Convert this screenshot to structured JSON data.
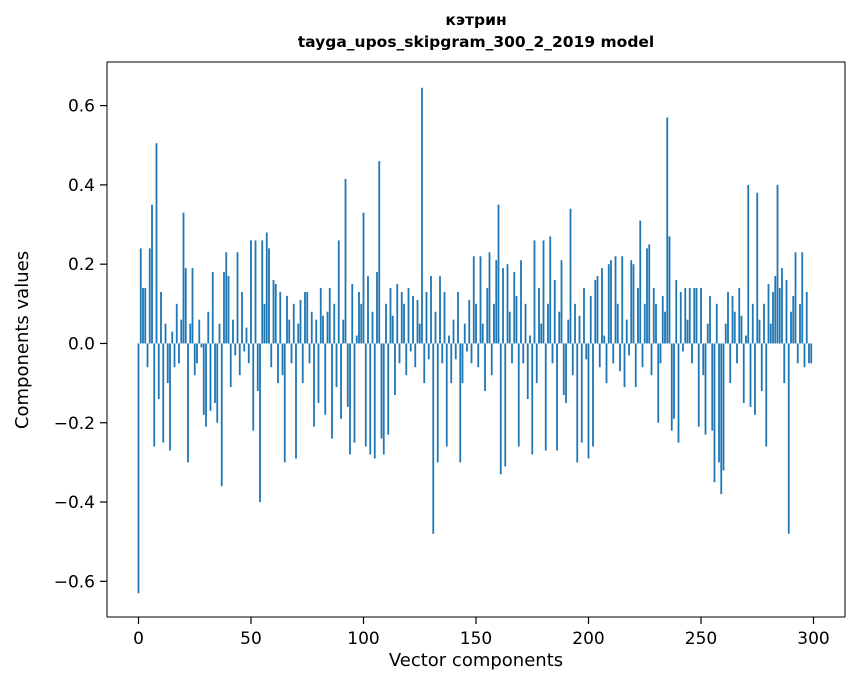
{
  "title": {
    "line1": "кэтрин",
    "line2": "tayga_upos_skipgram_300_2_2019 model"
  },
  "axes": {
    "xlabel": "Vector components",
    "ylabel": "Components values"
  },
  "chart_data": {
    "type": "bar",
    "title": "кэтрин — tayga_upos_skipgram_300_2_2019 model",
    "xlabel": "Vector components",
    "ylabel": "Components values",
    "bar_color": "#1f77b4",
    "grid": false,
    "legend": false,
    "xlim": [
      -14,
      314
    ],
    "ylim": [
      -0.69,
      0.71
    ],
    "xticks": [
      0,
      50,
      100,
      150,
      200,
      250,
      300
    ],
    "yticks": [
      -0.6,
      -0.4,
      -0.2,
      0.0,
      0.2,
      0.4,
      0.6
    ],
    "values": [
      -0.63,
      0.24,
      0.14,
      0.14,
      -0.06,
      0.24,
      0.35,
      -0.26,
      0.505,
      -0.14,
      0.13,
      -0.25,
      0.05,
      -0.1,
      -0.27,
      0.03,
      -0.06,
      0.1,
      -0.05,
      0.06,
      0.33,
      0.19,
      -0.3,
      0.05,
      0.19,
      -0.08,
      -0.05,
      0.06,
      -0.01,
      -0.18,
      -0.21,
      0.08,
      -0.17,
      0.18,
      -0.15,
      -0.2,
      0.05,
      -0.36,
      0.18,
      0.23,
      0.17,
      -0.11,
      0.06,
      -0.03,
      0.23,
      -0.08,
      0.13,
      -0.02,
      0.04,
      -0.05,
      0.26,
      -0.22,
      0.26,
      -0.12,
      -0.4,
      0.26,
      0.1,
      0.28,
      0.24,
      -0.06,
      0.16,
      0.15,
      -0.1,
      0.13,
      -0.08,
      -0.3,
      0.12,
      0.06,
      -0.05,
      0.1,
      -0.29,
      0.05,
      0.11,
      -0.1,
      0.13,
      0.13,
      -0.05,
      0.08,
      -0.21,
      0.06,
      -0.15,
      0.14,
      0.07,
      -0.18,
      0.08,
      0.14,
      -0.24,
      0.1,
      -0.11,
      0.26,
      -0.19,
      0.06,
      0.415,
      -0.16,
      -0.28,
      0.15,
      -0.25,
      0.02,
      0.13,
      0.1,
      0.33,
      -0.26,
      0.17,
      -0.28,
      0.08,
      -0.29,
      0.18,
      0.46,
      -0.24,
      -0.28,
      0.1,
      -0.23,
      0.14,
      0.07,
      -0.13,
      0.15,
      -0.05,
      0.13,
      0.1,
      -0.08,
      0.14,
      -0.02,
      0.12,
      -0.06,
      0.11,
      0.05,
      0.645,
      -0.1,
      0.13,
      -0.04,
      0.17,
      -0.48,
      0.08,
      -0.3,
      0.17,
      -0.05,
      0.13,
      -0.26,
      0.02,
      -0.1,
      0.06,
      -0.04,
      0.13,
      -0.3,
      -0.1,
      0.05,
      -0.02,
      0.11,
      -0.05,
      0.22,
      0.1,
      -0.06,
      0.22,
      0.05,
      -0.12,
      0.14,
      0.23,
      -0.08,
      0.1,
      0.21,
      0.35,
      -0.33,
      0.19,
      -0.31,
      0.2,
      0.08,
      -0.05,
      0.18,
      0.12,
      -0.26,
      0.21,
      -0.05,
      0.1,
      -0.14,
      0.02,
      -0.28,
      0.26,
      -0.1,
      0.14,
      0.05,
      0.26,
      -0.27,
      0.1,
      0.27,
      -0.05,
      0.16,
      -0.27,
      0.08,
      0.21,
      -0.13,
      -0.15,
      0.06,
      0.34,
      -0.08,
      0.1,
      -0.3,
      0.07,
      -0.25,
      0.14,
      -0.04,
      -0.29,
      0.12,
      -0.26,
      0.16,
      0.17,
      -0.06,
      0.19,
      0.02,
      -0.1,
      0.2,
      0.21,
      -0.05,
      0.22,
      0.1,
      -0.07,
      0.22,
      -0.11,
      0.06,
      -0.03,
      0.21,
      0.2,
      -0.11,
      0.14,
      0.31,
      -0.06,
      0.1,
      0.24,
      0.25,
      -0.08,
      0.14,
      0.1,
      -0.2,
      -0.05,
      0.12,
      0.08,
      0.57,
      0.27,
      -0.22,
      -0.19,
      0.16,
      -0.25,
      0.13,
      -0.02,
      0.14,
      0.06,
      0.14,
      -0.05,
      0.14,
      0.14,
      -0.21,
      0.14,
      -0.08,
      -0.23,
      0.05,
      0.12,
      -0.22,
      -0.35,
      0.1,
      -0.3,
      -0.38,
      -0.32,
      0.05,
      0.13,
      -0.1,
      0.12,
      0.08,
      -0.05,
      0.14,
      0.07,
      -0.15,
      0.02,
      0.4,
      -0.16,
      0.1,
      -0.18,
      0.38,
      0.06,
      -0.12,
      0.1,
      -0.26,
      0.15,
      0.05,
      0.13,
      0.17,
      0.4,
      0.14,
      0.19,
      -0.1,
      0.16,
      -0.48,
      0.08,
      0.12,
      0.23,
      -0.05,
      0.1,
      0.23,
      -0.06,
      0.13,
      -0.05,
      -0.05
    ]
  }
}
